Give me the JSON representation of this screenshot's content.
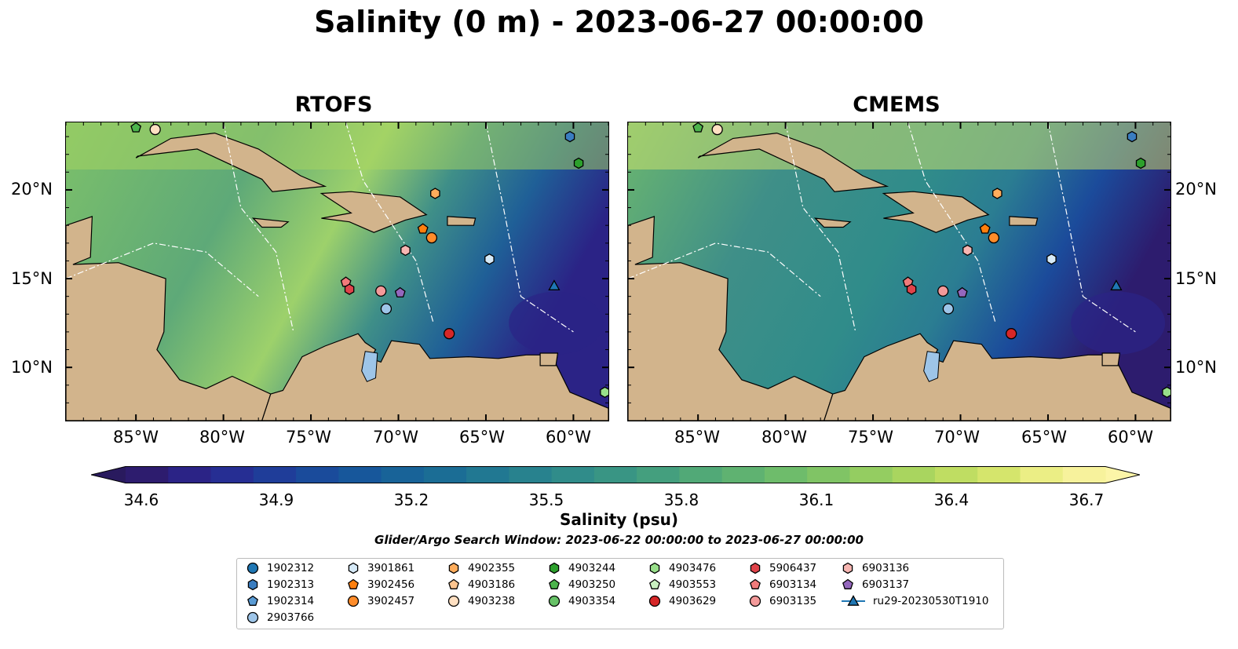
{
  "title": "Salinity (0 m) - 2023-06-27 00:00:00",
  "panels": [
    {
      "title": "RTOFS"
    },
    {
      "title": "CMEMS"
    }
  ],
  "lat_labels": [
    "20°N",
    "15°N",
    "10°N"
  ],
  "lon_labels": [
    "85°W",
    "80°W",
    "75°W",
    "70°W",
    "65°W",
    "60°W"
  ],
  "colorbar": {
    "ticks": [
      "34.6",
      "34.9",
      "35.2",
      "35.5",
      "35.8",
      "36.1",
      "36.4",
      "36.7"
    ],
    "label": "Salinity (psu)",
    "colors": [
      "#2d1c6e",
      "#2b2386",
      "#262e93",
      "#1f3d99",
      "#1a4b9b",
      "#17579b",
      "#186398",
      "#1b6d95",
      "#217892",
      "#28828e",
      "#308c8a",
      "#399584",
      "#449f7e",
      "#51a977",
      "#5fb271",
      "#6ebc6b",
      "#80c465",
      "#94cd61",
      "#a9d55f",
      "#bfdd62",
      "#d5e56c",
      "#ebee85",
      "#f7f29c"
    ],
    "under_color": "#291a5e",
    "over_color": "#fcf5a8"
  },
  "search_window": "Glider/Argo Search Window: 2023-06-22 00:00:00 to 2023-06-27 00:00:00",
  "legend": [
    {
      "id": "1902312",
      "shape": "circle",
      "color": "#1f77b4"
    },
    {
      "id": "1902313",
      "shape": "hexagon",
      "color": "#3a7dc0"
    },
    {
      "id": "1902314",
      "shape": "pentagon",
      "color": "#5a9bd4"
    },
    {
      "id": "2903766",
      "shape": "circle",
      "color": "#9ec5e8"
    },
    {
      "id": "3901861",
      "shape": "hexagon",
      "color": "#d6eaf8"
    },
    {
      "id": "3902456",
      "shape": "pentagon",
      "color": "#ff7f0e"
    },
    {
      "id": "3902457",
      "shape": "circle",
      "color": "#ff8c2a"
    },
    {
      "id": "4902355",
      "shape": "hexagon",
      "color": "#ffad5c"
    },
    {
      "id": "4903186",
      "shape": "pentagon",
      "color": "#ffc58f"
    },
    {
      "id": "4903238",
      "shape": "circle",
      "color": "#ffe0c2"
    },
    {
      "id": "4903244",
      "shape": "hexagon",
      "color": "#2ca02c"
    },
    {
      "id": "4903250",
      "shape": "pentagon",
      "color": "#4cb44c"
    },
    {
      "id": "4903354",
      "shape": "circle",
      "color": "#67c267"
    },
    {
      "id": "4903476",
      "shape": "hexagon",
      "color": "#98df8a"
    },
    {
      "id": "4903553",
      "shape": "pentagon",
      "color": "#c9f0c0"
    },
    {
      "id": "4903629",
      "shape": "circle",
      "color": "#d62728"
    },
    {
      "id": "5906437",
      "shape": "hexagon",
      "color": "#e0434a"
    },
    {
      "id": "6903134",
      "shape": "pentagon",
      "color": "#f07a7a"
    },
    {
      "id": "6903135",
      "shape": "circle",
      "color": "#f49a9a"
    },
    {
      "id": "6903136",
      "shape": "hexagon",
      "color": "#f7b6b2"
    },
    {
      "id": "6903137",
      "shape": "pentagon",
      "color": "#9467bd"
    },
    {
      "id": "ru29-20230530T1910",
      "shape": "triangle-line",
      "color": "#1f77b4"
    }
  ],
  "platforms": [
    {
      "id": "4903250",
      "lon": -85.0,
      "lat": 23.5
    },
    {
      "id": "4903238",
      "lon": -83.9,
      "lat": 23.4
    },
    {
      "id": "1902313",
      "lon": -60.2,
      "lat": 23.0
    },
    {
      "id": "4903244",
      "lon": -59.7,
      "lat": 21.5
    },
    {
      "id": "4902355",
      "lon": -67.9,
      "lat": 19.8
    },
    {
      "id": "3902456",
      "lon": -68.6,
      "lat": 17.8
    },
    {
      "id": "3902457",
      "lon": -68.1,
      "lat": 17.3
    },
    {
      "id": "6903136",
      "lon": -69.6,
      "lat": 16.6
    },
    {
      "id": "3901861",
      "lon": -64.8,
      "lat": 16.1
    },
    {
      "id": "6903134",
      "lon": -73.0,
      "lat": 14.8
    },
    {
      "id": "5906437",
      "lon": -72.8,
      "lat": 14.4
    },
    {
      "id": "6903135",
      "lon": -71.0,
      "lat": 14.3
    },
    {
      "id": "6903137",
      "lon": -69.9,
      "lat": 14.2
    },
    {
      "id": "2903766",
      "lon": -70.7,
      "lat": 13.3
    },
    {
      "id": "4903629",
      "lon": -67.1,
      "lat": 11.9
    },
    {
      "id": "ru29-20230530T1910",
      "lon": -61.1,
      "lat": 14.6
    },
    {
      "id": "4903476",
      "lon": -58.2,
      "lat": 8.6
    }
  ]
}
